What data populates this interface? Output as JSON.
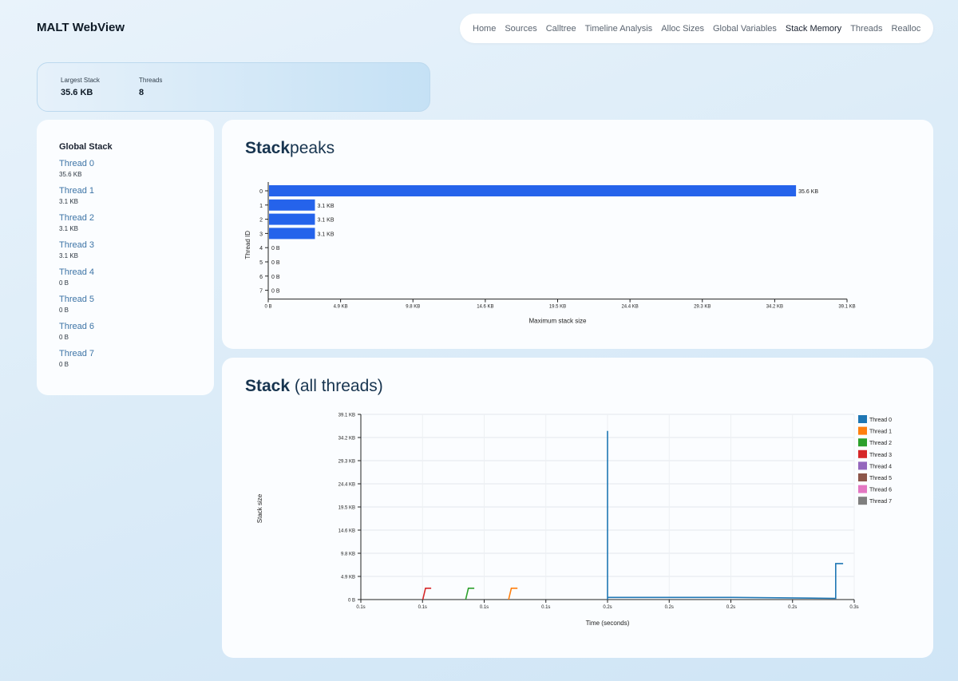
{
  "app": {
    "title": "MALT WebView"
  },
  "nav": {
    "items": [
      "Home",
      "Sources",
      "Calltree",
      "Timeline Analysis",
      "Alloc Sizes",
      "Global Variables",
      "Stack Memory",
      "Threads",
      "Realloc"
    ],
    "active": "Stack Memory"
  },
  "stats": {
    "largest_stack_label": "Largest Stack",
    "largest_stack_value": "35.6 KB",
    "threads_label": "Threads",
    "threads_value": "8"
  },
  "sidebar": {
    "global_label": "Global Stack",
    "threads": [
      {
        "name": "Thread 0",
        "size": "35.6 KB"
      },
      {
        "name": "Thread 1",
        "size": "3.1 KB"
      },
      {
        "name": "Thread 2",
        "size": "3.1 KB"
      },
      {
        "name": "Thread 3",
        "size": "3.1 KB"
      },
      {
        "name": "Thread 4",
        "size": "0 B"
      },
      {
        "name": "Thread 5",
        "size": "0 B"
      },
      {
        "name": "Thread 6",
        "size": "0 B"
      },
      {
        "name": "Thread 7",
        "size": "0 B"
      }
    ]
  },
  "peaks": {
    "title_bold": "Stack",
    "title_rest": "peaks"
  },
  "stack": {
    "title_bold": "Stack",
    "title_rest": " (all threads)"
  },
  "chart_data": [
    {
      "type": "bar",
      "orientation": "horizontal",
      "xlabel": "Maximum stack size",
      "ylabel": "Thread ID",
      "categories": [
        "0",
        "1",
        "2",
        "3",
        "4",
        "5",
        "6",
        "7"
      ],
      "values_kb": [
        35.6,
        3.1,
        3.1,
        3.1,
        0,
        0,
        0,
        0
      ],
      "value_labels": [
        "35.6 KB",
        "3.1 KB",
        "3.1 KB",
        "3.1 KB",
        "0 B",
        "0 B",
        "0 B",
        "0 B"
      ],
      "x_ticks": [
        "0 B",
        "4.9 KB",
        "9.8 KB",
        "14.6 KB",
        "19.5 KB",
        "24.4 KB",
        "29.3 KB",
        "34.2 KB",
        "39.1 KB"
      ],
      "xlim_kb": [
        0,
        39.1
      ],
      "bar_color": "#2563eb"
    },
    {
      "type": "line",
      "xlabel": "Time (seconds)",
      "ylabel": "Stack size",
      "x_ticks": [
        "0.1s",
        "0.1s",
        "0.1s",
        "0.1s",
        "0.2s",
        "0.2s",
        "0.2s",
        "0.2s",
        "0.3s"
      ],
      "y_ticks": [
        "0 B",
        "4.9 KB",
        "9.8 KB",
        "14.6 KB",
        "19.5 KB",
        "24.4 KB",
        "29.3 KB",
        "34.2 KB",
        "39.1 KB"
      ],
      "xlim": [
        0.1,
        0.3
      ],
      "ylim_kb": [
        0,
        39.1
      ],
      "grid": true,
      "legend_position": "right",
      "series": [
        {
          "name": "Thread 0",
          "color": "#1f77b4",
          "x": [
            0.2,
            0.2,
            0.2,
            0.251,
            0.2925,
            0.2925,
            0.2955
          ],
          "y_kb": [
            0,
            35.6,
            0.45,
            0.45,
            0.25,
            7.6,
            7.6
          ]
        },
        {
          "name": "Thread 1",
          "color": "#ff7f0e",
          "x": [
            0.1599,
            0.161,
            0.1635
          ],
          "y_kb": [
            0,
            2.4,
            2.4
          ]
        },
        {
          "name": "Thread 2",
          "color": "#2ca02c",
          "x": [
            0.1425,
            0.1436,
            0.146
          ],
          "y_kb": [
            0,
            2.4,
            2.4
          ]
        },
        {
          "name": "Thread 3",
          "color": "#d62728",
          "x": [
            0.1251,
            0.1262,
            0.1285
          ],
          "y_kb": [
            0,
            2.4,
            2.4
          ]
        },
        {
          "name": "Thread 4",
          "color": "#9467bd",
          "x": [],
          "y_kb": []
        },
        {
          "name": "Thread 5",
          "color": "#8c564b",
          "x": [],
          "y_kb": []
        },
        {
          "name": "Thread 6",
          "color": "#e377c2",
          "x": [],
          "y_kb": []
        },
        {
          "name": "Thread 7",
          "color": "#7f7f7f",
          "x": [],
          "y_kb": []
        }
      ]
    }
  ]
}
